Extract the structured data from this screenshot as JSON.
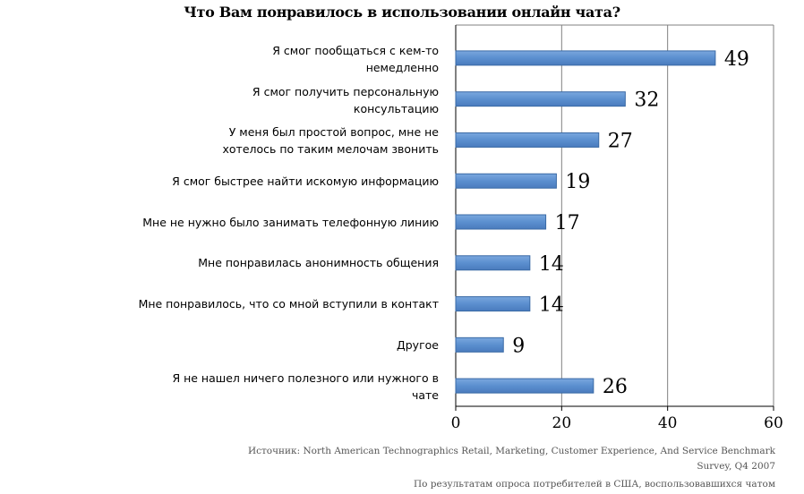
{
  "chart_data": {
    "type": "bar",
    "orientation": "horizontal",
    "title": "Что Вам понравилось в использовании онлайн чата?",
    "categories": [
      "Я смог пообщаться с кем-то немедленно",
      "Я смог получить персональную консультацию",
      "У меня был простой вопрос, мне не хотелось по таким мелочам звонить",
      "Я смог быстрее найти искомую информацию",
      "Мне не нужно было занимать телефонную линию",
      "Мне понравилась анонимность общения",
      "Мне понравилось, что со мной вступили  в контакт",
      "Другое",
      "Я не нашел ничего полезного или нужного в чате"
    ],
    "category_lines": [
      [
        "Я смог пообщаться с кем-то",
        "немедленно"
      ],
      [
        "Я смог получить персональную",
        "консультацию"
      ],
      [
        "У меня был простой вопрос, мне не",
        "хотелось по таким мелочам звонить"
      ],
      [
        "Я смог быстрее найти искомую информацию"
      ],
      [
        "Мне не нужно было занимать телефонную линию"
      ],
      [
        "Мне понравилась анонимность общения"
      ],
      [
        "Мне понравилось, что со мной вступили  в контакт"
      ],
      [
        "Другое"
      ],
      [
        "Я не нашел ничего полезного или нужного в",
        "чате"
      ]
    ],
    "values": [
      49,
      32,
      27,
      19,
      17,
      14,
      14,
      9,
      26
    ],
    "xlim": [
      0,
      60
    ],
    "x_ticks": [
      0,
      20,
      40,
      60
    ],
    "grid": "vertical",
    "legend": "none",
    "colors": {
      "bar_fill": "#5b8fcf",
      "bar_edge": "#3a6aa5",
      "grid": "#808080"
    }
  },
  "footer": {
    "line1": "Источник: North American Technographics  Retail, Marketing,  Customer Experience,  And Service  Benchmark",
    "line2": "Survey, Q4 2007",
    "line3": "По результатам  опроса потребителей  в США, воспользовавшихся  чатом"
  }
}
